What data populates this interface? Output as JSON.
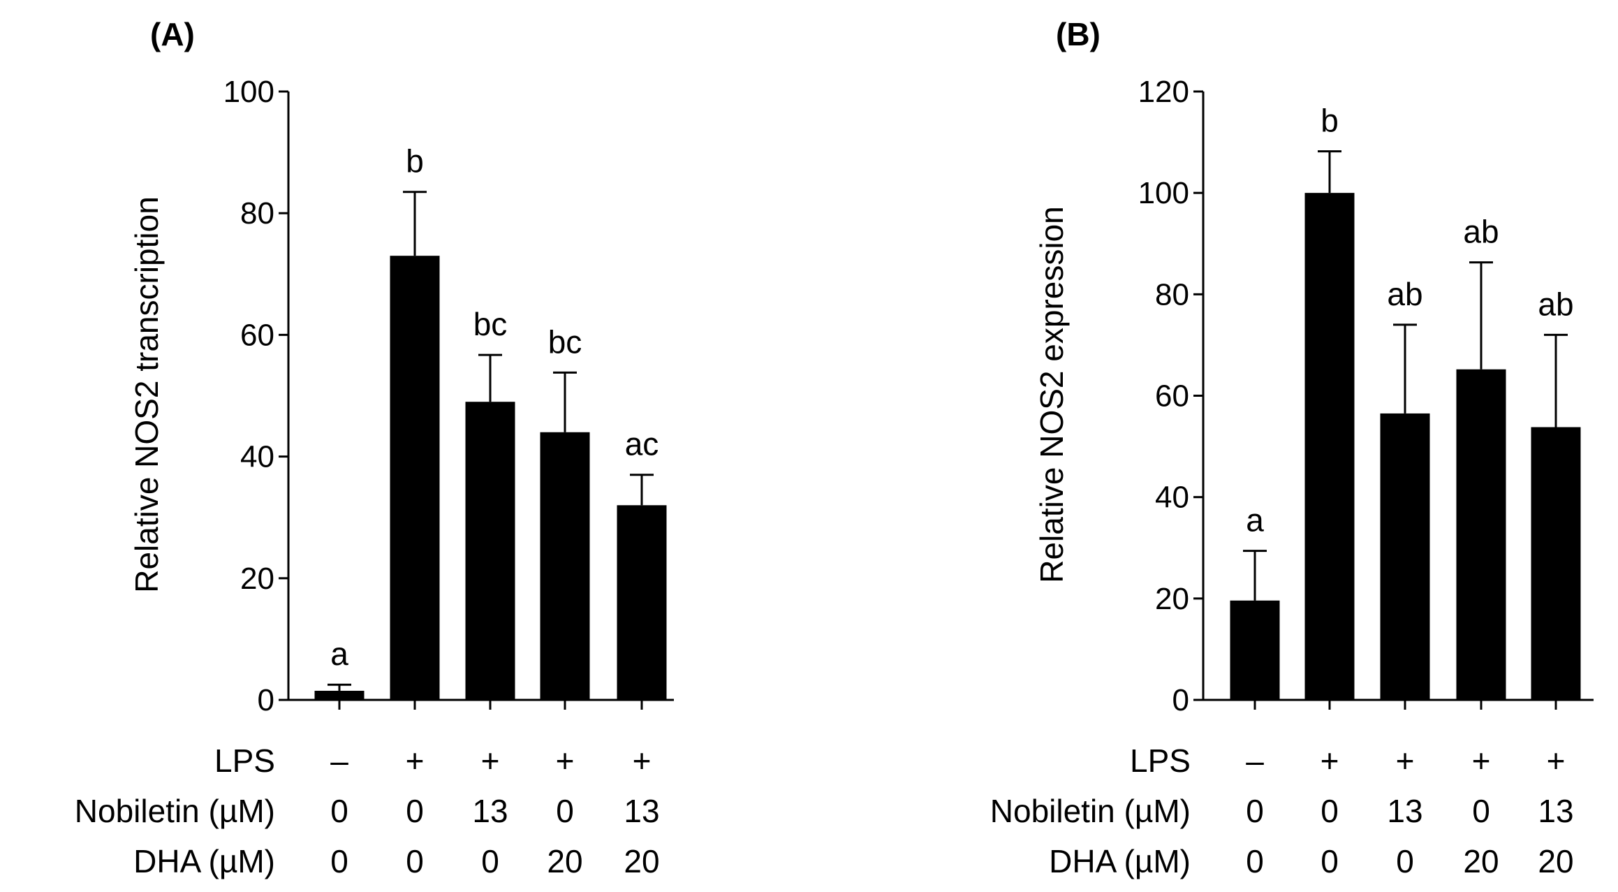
{
  "chart_data": [
    {
      "type": "bar",
      "panel_label": "(A)",
      "ylabel": "Relative NOS2 transcription",
      "ylim": [
        0,
        100
      ],
      "yticks": [
        0,
        20,
        40,
        60,
        80,
        100
      ],
      "values": [
        1.5,
        73,
        49,
        44,
        32
      ],
      "error_upper": [
        2.5,
        83.5,
        56.7,
        53.8,
        37
      ],
      "significance_letters": [
        "a",
        "b",
        "bc",
        "bc",
        "ac"
      ],
      "conditions": [
        {
          "label": "LPS",
          "values": [
            "–",
            "+",
            "+",
            "+",
            "+"
          ]
        },
        {
          "label": "Nobiletin (µM)",
          "values": [
            "0",
            "0",
            "13",
            "0",
            "13"
          ]
        },
        {
          "label": "DHA (µM)",
          "values": [
            "0",
            "0",
            "0",
            "20",
            "20"
          ]
        }
      ],
      "bar_color": "#000000"
    },
    {
      "type": "bar",
      "panel_label": "(B)",
      "ylabel": "Relative NOS2 expression",
      "ylim": [
        0,
        120
      ],
      "yticks": [
        0,
        20,
        40,
        60,
        80,
        100,
        120
      ],
      "values": [
        19.6,
        100,
        56.5,
        65.2,
        53.8
      ],
      "error_upper": [
        29.4,
        108.2,
        74,
        86.3,
        72
      ],
      "significance_letters": [
        "a",
        "b",
        "ab",
        "ab",
        "ab"
      ],
      "conditions": [
        {
          "label": "LPS",
          "values": [
            "–",
            "+",
            "+",
            "+",
            "+"
          ]
        },
        {
          "label": "Nobiletin (µM)",
          "values": [
            "0",
            "0",
            "13",
            "0",
            "13"
          ]
        },
        {
          "label": "DHA (µM)",
          "values": [
            "0",
            "0",
            "0",
            "20",
            "20"
          ]
        }
      ],
      "bar_color": "#000000"
    }
  ]
}
